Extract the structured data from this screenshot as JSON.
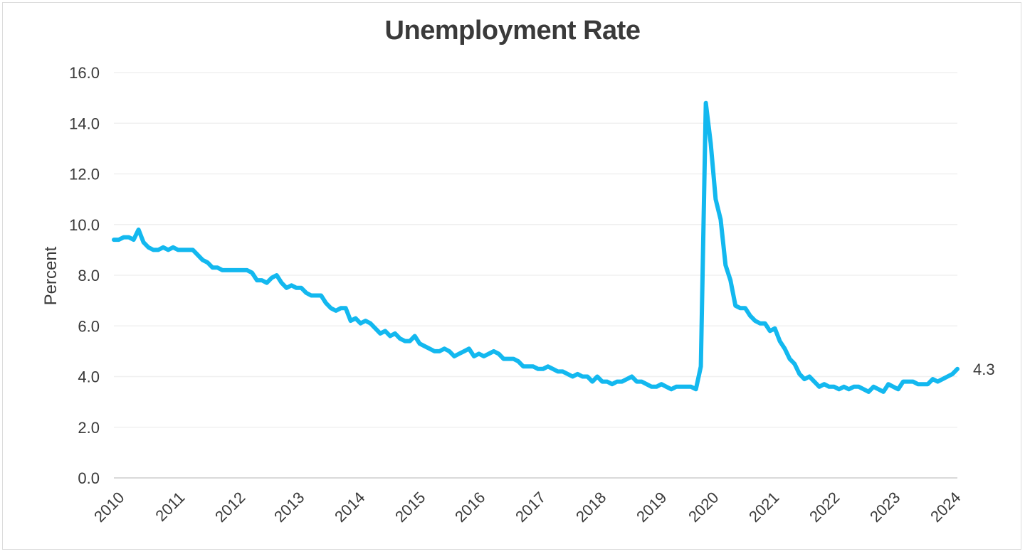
{
  "chart_data": {
    "type": "line",
    "title": "Unemployment Rate",
    "xlabel": "",
    "ylabel": "Percent",
    "ylim": [
      0,
      16
    ],
    "yticks": [
      "0.0",
      "2.0",
      "4.0",
      "6.0",
      "8.0",
      "10.0",
      "12.0",
      "14.0",
      "16.0"
    ],
    "xticks": [
      "2010",
      "2011",
      "2012",
      "2013",
      "2014",
      "2015",
      "2016",
      "2017",
      "2018",
      "2019",
      "2020",
      "2021",
      "2022",
      "2023",
      "2024"
    ],
    "grid": true,
    "legend": "none",
    "line_color": "#13b8ef",
    "end_label": "4.3",
    "series": [
      {
        "name": "Unemployment Rate",
        "frequency": "monthly",
        "start": "2010-01",
        "values": [
          9.4,
          9.4,
          9.5,
          9.5,
          9.4,
          9.8,
          9.3,
          9.1,
          9.0,
          9.0,
          9.1,
          9.0,
          9.1,
          9.0,
          9.0,
          9.0,
          9.0,
          8.8,
          8.6,
          8.5,
          8.3,
          8.3,
          8.2,
          8.2,
          8.2,
          8.2,
          8.2,
          8.2,
          8.1,
          7.8,
          7.8,
          7.7,
          7.9,
          8.0,
          7.7,
          7.5,
          7.6,
          7.5,
          7.5,
          7.3,
          7.2,
          7.2,
          7.2,
          6.9,
          6.7,
          6.6,
          6.7,
          6.7,
          6.2,
          6.3,
          6.1,
          6.2,
          6.1,
          5.9,
          5.7,
          5.8,
          5.6,
          5.7,
          5.5,
          5.4,
          5.4,
          5.6,
          5.3,
          5.2,
          5.1,
          5.0,
          5.0,
          5.1,
          5.0,
          4.8,
          4.9,
          5.0,
          5.1,
          4.8,
          4.9,
          4.8,
          4.9,
          5.0,
          4.9,
          4.7,
          4.7,
          4.7,
          4.6,
          4.4,
          4.4,
          4.4,
          4.3,
          4.3,
          4.4,
          4.3,
          4.2,
          4.2,
          4.1,
          4.0,
          4.1,
          4.0,
          4.0,
          3.8,
          4.0,
          3.8,
          3.8,
          3.7,
          3.8,
          3.8,
          3.9,
          4.0,
          3.8,
          3.8,
          3.7,
          3.6,
          3.6,
          3.7,
          3.6,
          3.5,
          3.6,
          3.6,
          3.6,
          3.6,
          3.5,
          4.4,
          14.8,
          13.2,
          11.0,
          10.2,
          8.4,
          7.8,
          6.8,
          6.7,
          6.7,
          6.4,
          6.2,
          6.1,
          6.1,
          5.8,
          5.9,
          5.4,
          5.1,
          4.7,
          4.5,
          4.1,
          3.9,
          4.0,
          3.8,
          3.6,
          3.7,
          3.6,
          3.6,
          3.5,
          3.6,
          3.5,
          3.6,
          3.6,
          3.5,
          3.4,
          3.6,
          3.5,
          3.4,
          3.7,
          3.6,
          3.5,
          3.8,
          3.8,
          3.8,
          3.7,
          3.7,
          3.7,
          3.9,
          3.8,
          3.9,
          4.0,
          4.1,
          4.3
        ]
      }
    ]
  }
}
